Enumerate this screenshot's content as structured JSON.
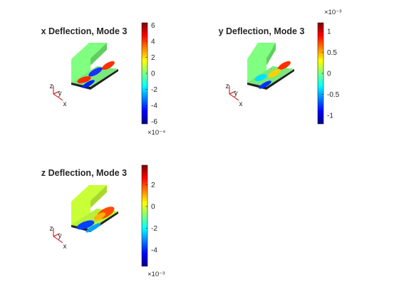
{
  "figure": {
    "background": "#ffffff"
  },
  "chart_data": [
    {
      "type": "heatmap",
      "title": "x Deflection, Mode 3",
      "colormap": "jet",
      "colorbar": {
        "min": -6.3,
        "max": 6.3,
        "ticks": [
          -6,
          -4,
          -2,
          0,
          2,
          4,
          6
        ],
        "tick_labels": [
          "-6",
          "-4",
          "-2",
          "0",
          "2",
          "4",
          "6"
        ],
        "exponent_label": "×10⁻⁴",
        "exponent_position": "bottom"
      },
      "surfaces": {
        "vertical_plate_value": 0.0,
        "base_lobes": [
          {
            "where": "front",
            "value": 5.5
          },
          {
            "where": "front",
            "value": -5.5
          },
          {
            "where": "back",
            "value": -5.0
          },
          {
            "where": "back",
            "value": 5.5
          }
        ]
      },
      "axes_triad": {
        "labels": [
          "x",
          "y",
          "z"
        ]
      }
    },
    {
      "type": "heatmap",
      "title": "y Deflection, Mode 3",
      "colormap": "jet",
      "colorbar": {
        "min": -1.2,
        "max": 1.2,
        "ticks": [
          -1,
          -0.5,
          0,
          0.5,
          1
        ],
        "tick_labels": [
          "-1",
          "-0.5",
          "0",
          "0.5",
          "1"
        ],
        "exponent_label": "×10⁻³",
        "exponent_position": "top"
      },
      "surfaces": {
        "vertical_plate_value": 0.0,
        "base_lobes": [
          {
            "where": "back",
            "value": 1.1
          },
          {
            "where": "front",
            "value": -1.0
          }
        ]
      },
      "axes_triad": {
        "labels": [
          "x",
          "y",
          "z"
        ]
      }
    },
    {
      "type": "heatmap",
      "title": "z Deflection, Mode 3",
      "colormap": "jet",
      "colorbar": {
        "min": -5.5,
        "max": 3.8,
        "ticks": [
          -4,
          -2,
          0,
          2
        ],
        "tick_labels": [
          "-4",
          "-2",
          "0",
          "2"
        ],
        "exponent_label": "×10⁻³",
        "exponent_position": "bottom"
      },
      "surfaces": {
        "vertical_plate_value": 0.6,
        "base_lobes": [
          {
            "where": "back",
            "value": 3.5
          },
          {
            "where": "front",
            "value": -5.2
          }
        ]
      },
      "axes_triad": {
        "labels": [
          "x",
          "y",
          "z"
        ]
      }
    }
  ]
}
